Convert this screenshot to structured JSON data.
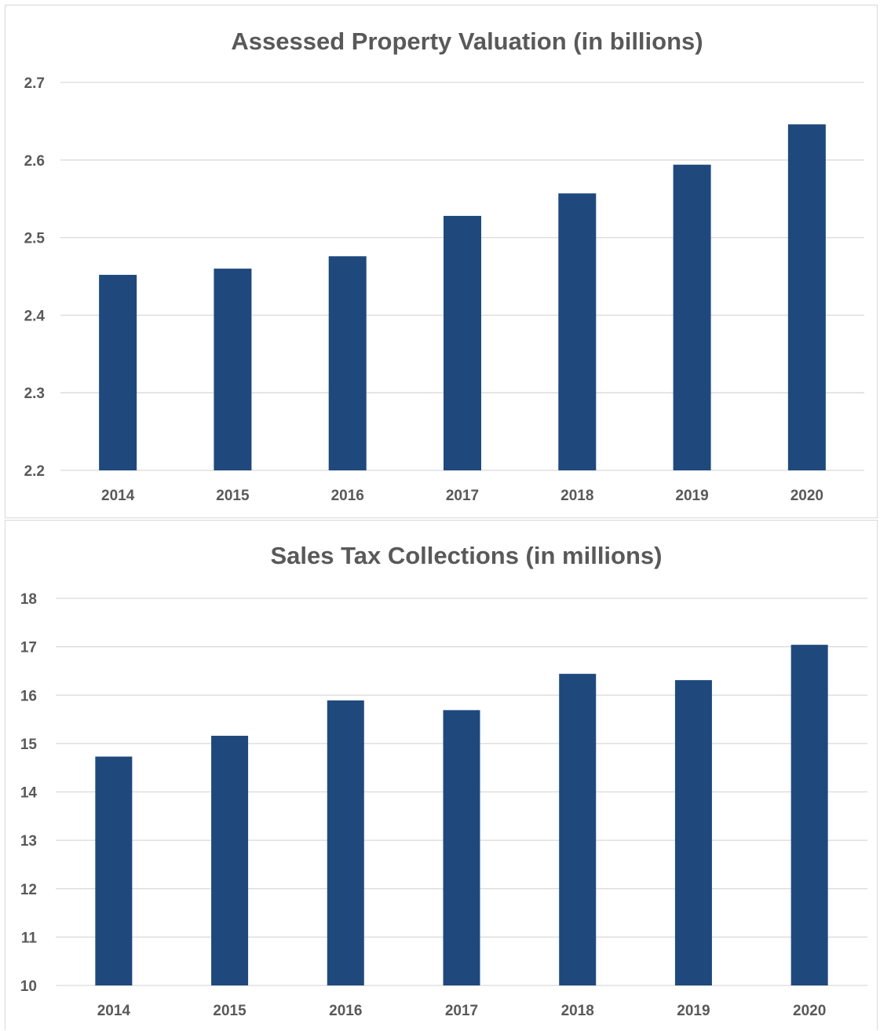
{
  "chart_data": [
    {
      "type": "bar",
      "title": "Assessed Property Valuation (in billions)",
      "xlabel": "",
      "ylabel": "",
      "categories": [
        "2014",
        "2015",
        "2016",
        "2017",
        "2018",
        "2019",
        "2020"
      ],
      "values": [
        2.452,
        2.46,
        2.476,
        2.528,
        2.557,
        2.594,
        2.646
      ],
      "ylim": [
        2.2,
        2.7
      ],
      "yticks": [
        "2.2",
        "2.3",
        "2.4",
        "2.5",
        "2.6",
        "2.7"
      ],
      "grid": true,
      "bar_color": "#1f497d"
    },
    {
      "type": "bar",
      "title": "Sales Tax Collections (in millions)",
      "xlabel": "",
      "ylabel": "",
      "categories": [
        "2014",
        "2015",
        "2016",
        "2017",
        "2018",
        "2019",
        "2020"
      ],
      "values": [
        14.73,
        15.16,
        15.89,
        15.69,
        16.44,
        16.31,
        17.04
      ],
      "ylim": [
        10,
        18
      ],
      "yticks": [
        "10",
        "11",
        "12",
        "13",
        "14",
        "15",
        "16",
        "17",
        "18"
      ],
      "grid": true,
      "bar_color": "#1f497d"
    }
  ]
}
